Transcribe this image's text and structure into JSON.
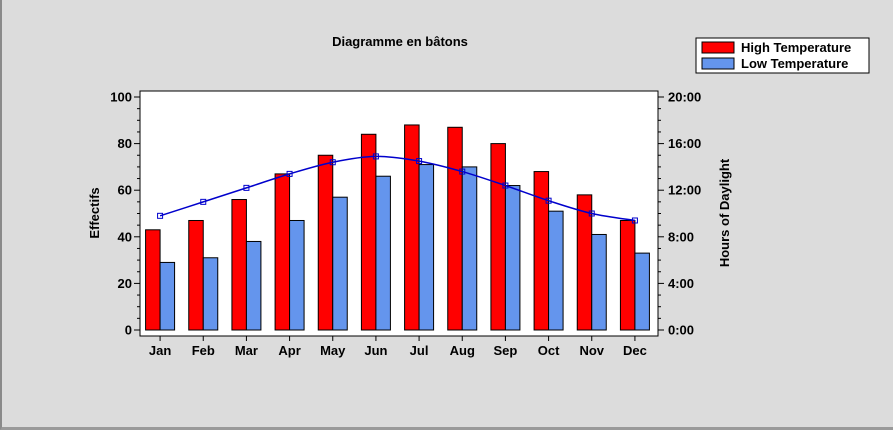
{
  "chart_data": {
    "type": "bar",
    "title": "Diagramme en bâtons",
    "categories": [
      "Jan",
      "Feb",
      "Mar",
      "Apr",
      "May",
      "Jun",
      "Jul",
      "Aug",
      "Sep",
      "Oct",
      "Nov",
      "Dec"
    ],
    "series": [
      {
        "name": "High Temperature",
        "values": [
          43,
          47,
          56,
          67,
          75,
          84,
          88,
          87,
          80,
          68,
          58,
          47
        ],
        "color": "#ff0000"
      },
      {
        "name": "Low Temperature",
        "values": [
          29,
          31,
          38,
          47,
          57,
          66,
          71,
          70,
          62,
          51,
          41,
          33
        ],
        "color": "#6495ed"
      }
    ],
    "line_series": {
      "axis": "y2",
      "color": "#0000cc",
      "values_hours": [
        9.8,
        11.0,
        12.2,
        13.4,
        14.4,
        14.9,
        14.5,
        13.6,
        12.4,
        11.1,
        10.0,
        9.4
      ]
    },
    "ylabel": "Effectifs",
    "ylim": [
      0,
      100
    ],
    "y_ticks": [
      0,
      20,
      40,
      60,
      80,
      100
    ],
    "y2label": "Hours of Daylight",
    "y2lim_hours": [
      0,
      20
    ],
    "y2_ticks": [
      "0:00",
      "4:00",
      "8:00",
      "12:00",
      "16:00",
      "20:00"
    ],
    "legend_placement": "top-right",
    "grid": false
  }
}
